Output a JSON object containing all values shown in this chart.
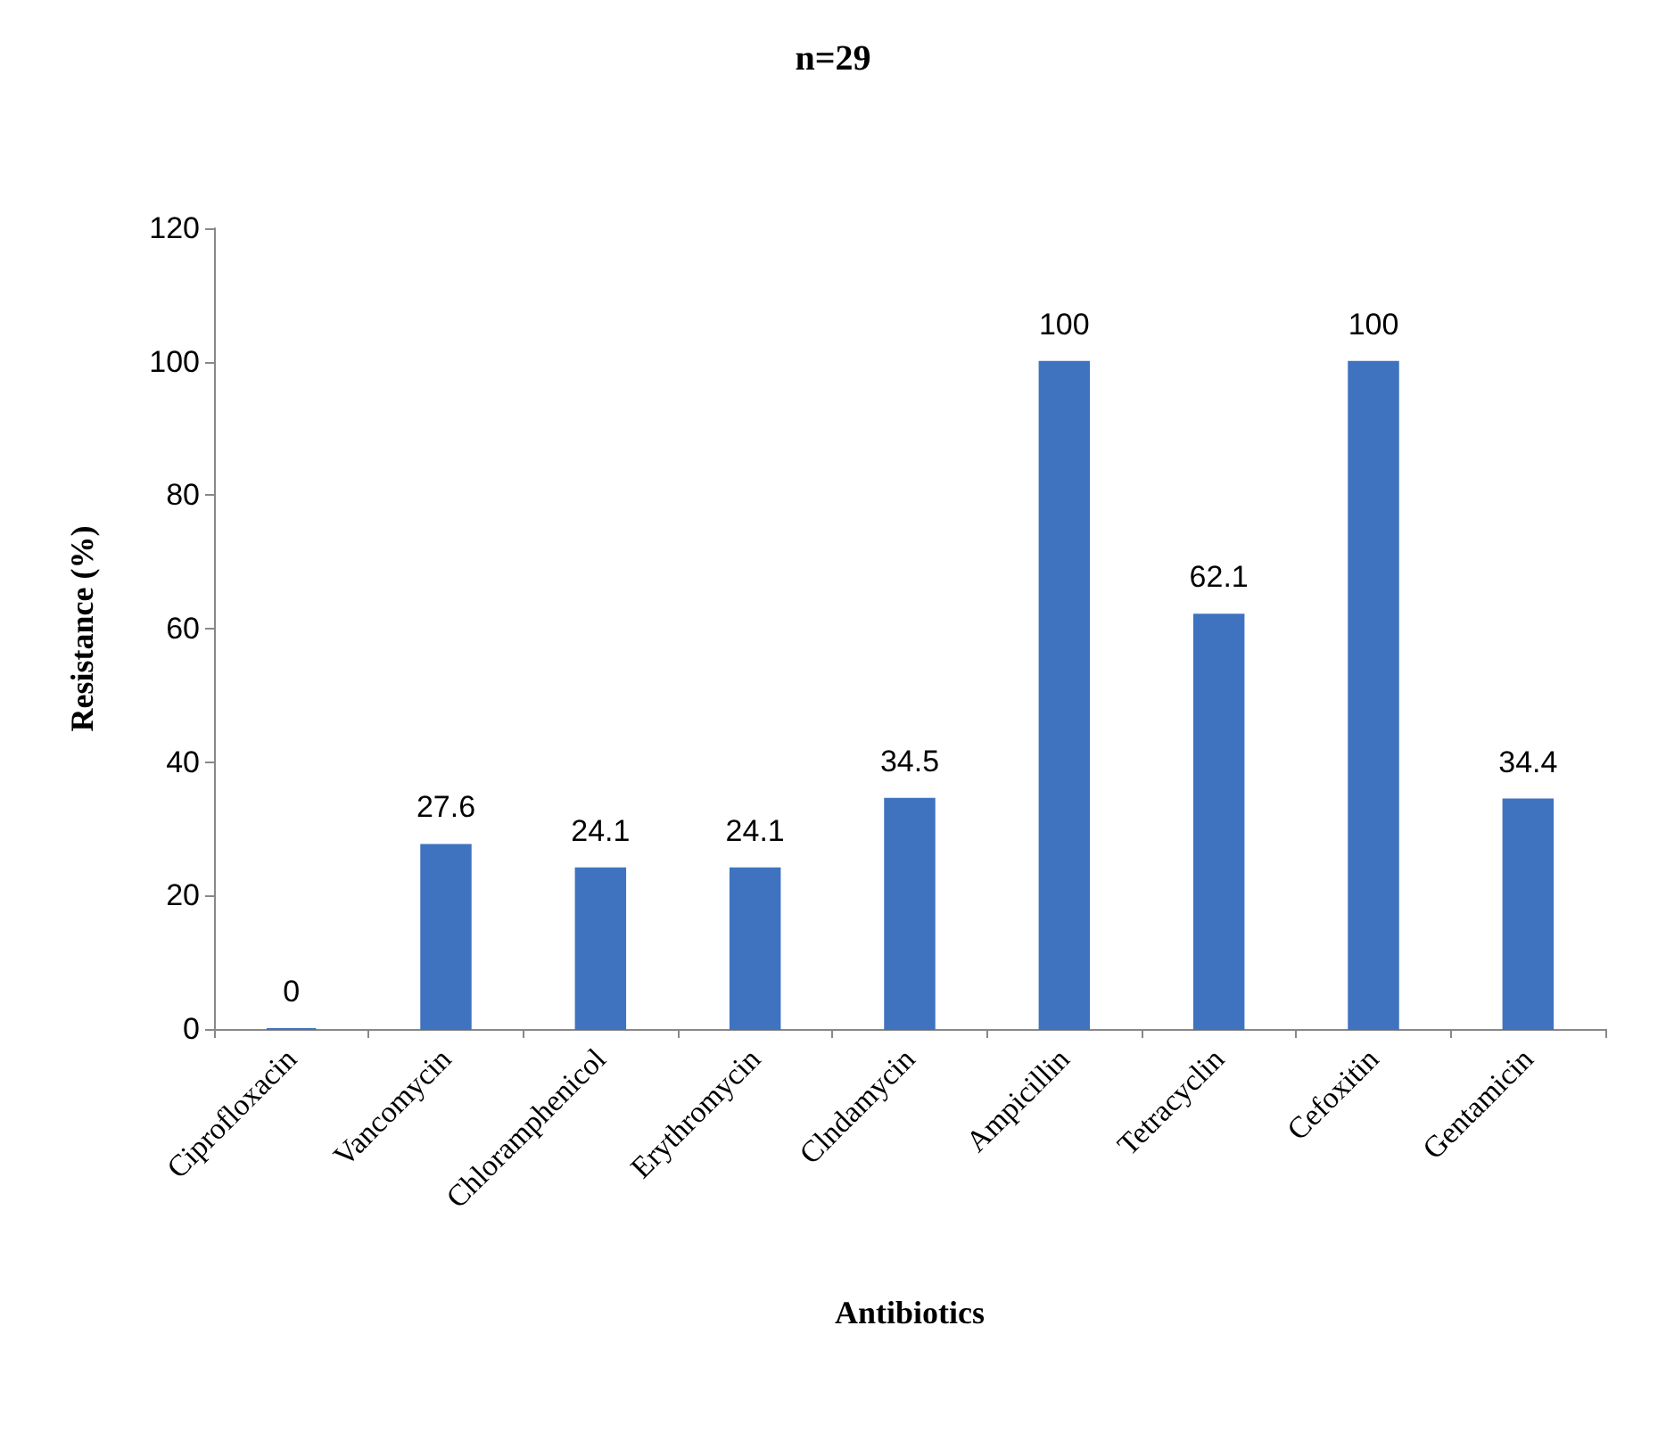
{
  "chart_data": {
    "type": "bar",
    "title": "n=29",
    "xlabel": "Antibiotics",
    "ylabel": "Resistance (%)",
    "categories": [
      "Ciprofloxacin",
      "Vancomycin",
      "Chloramphenicol",
      "Erythromycin",
      "Clndamycin",
      "Ampicillin",
      "Tetracyclin",
      "Cefoxitin",
      "Gentamicin"
    ],
    "values": [
      0,
      27.6,
      24.1,
      24.1,
      34.5,
      100,
      62.1,
      100,
      34.4
    ],
    "color": "#3f73c0",
    "ylim": [
      0,
      120
    ],
    "yticks": [
      0,
      20,
      40,
      60,
      80,
      100,
      120
    ],
    "data_labels": true
  }
}
